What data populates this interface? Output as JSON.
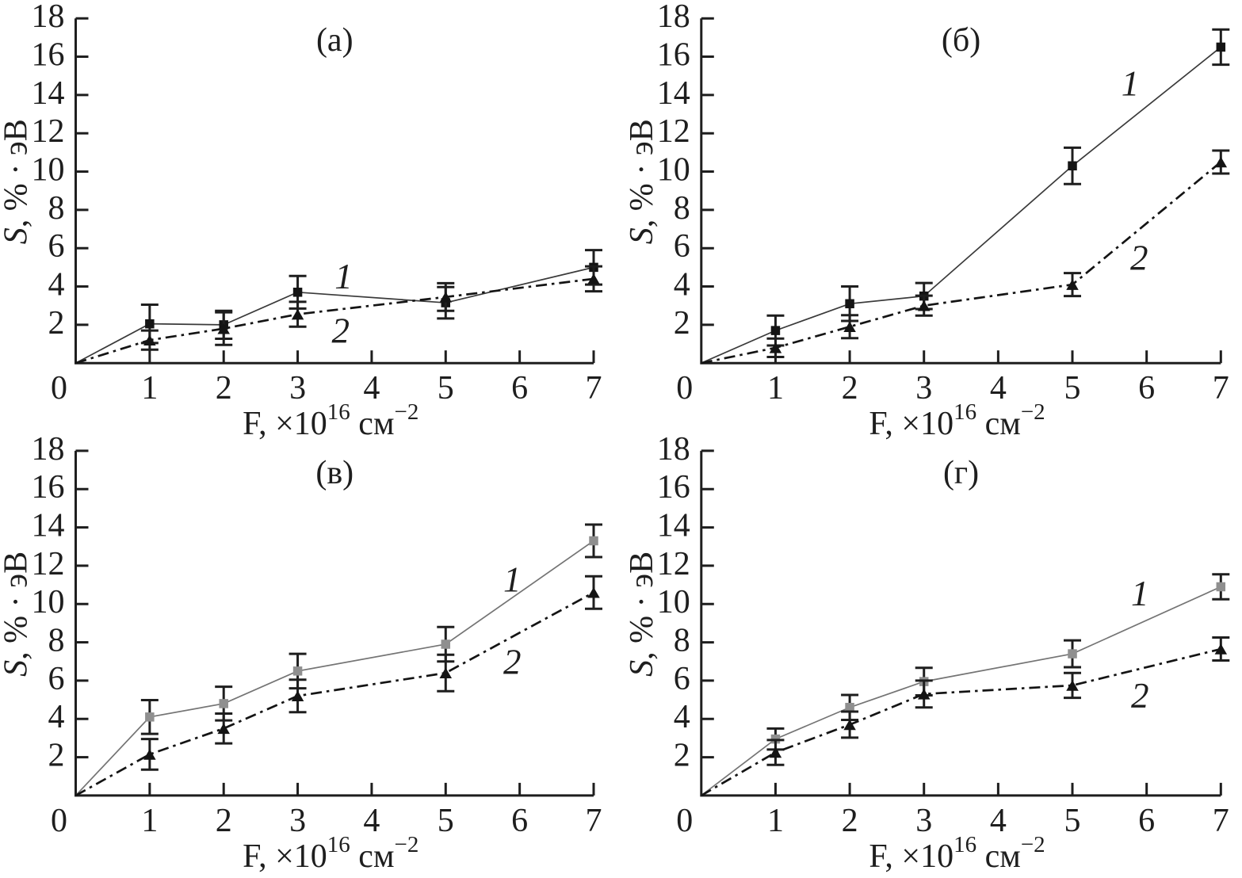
{
  "figure": {
    "background": "#ffffff",
    "ink_color": "#1e1e1e",
    "gray_line_color": "#747474",
    "gray_marker_color": "#8f8f8f",
    "dark_line_color": "#3a3a3a"
  },
  "chart_data": [
    {
      "type": "line",
      "title": "(a)",
      "xlabel": "F, ×10¹⁶ см⁻²",
      "ylabel": "S, % · эВ",
      "xlabel_parts": [
        {
          "t": "F, ×10"
        },
        {
          "t": "16",
          "sup": true
        },
        {
          "t": " см"
        },
        {
          "t": "−2",
          "sup": true
        }
      ],
      "ylabel_parts": [
        {
          "t": "S",
          "italic": true
        },
        {
          "t": ", % · эВ"
        }
      ],
      "xlim": [
        0,
        7
      ],
      "ylim": [
        0,
        18
      ],
      "xticks": [
        0,
        1,
        2,
        3,
        4,
        5,
        6,
        7
      ],
      "yticks": [
        2,
        4,
        6,
        8,
        10,
        12,
        14,
        16,
        18
      ],
      "grid": false,
      "legend_position": "none",
      "series": [
        {
          "name": "1",
          "marker": "square",
          "line_style": "solid",
          "line_color": "#3a3a3a",
          "marker_color": "#141414",
          "x": [
            0,
            1,
            2,
            3,
            5,
            7
          ],
          "y": [
            0,
            2.05,
            2.0,
            3.7,
            3.15,
            5.0
          ],
          "yerr": [
            null,
            1.0,
            0.73,
            0.85,
            0.82,
            0.9
          ]
        },
        {
          "name": "2",
          "marker": "triangle",
          "line_style": "dashdot",
          "line_color": "#141414",
          "marker_color": "#141414",
          "x": [
            0,
            1,
            2,
            3,
            5,
            7
          ],
          "y": [
            0,
            1.2,
            1.8,
            2.55,
            3.45,
            4.4
          ],
          "yerr": [
            null,
            0.5,
            0.85,
            0.65,
            0.72,
            0.65
          ]
        }
      ],
      "series_labels": [
        {
          "text": "1",
          "x": 3.62,
          "y": 4.52
        },
        {
          "text": "2",
          "x": 3.58,
          "y": 1.68
        }
      ]
    },
    {
      "type": "line",
      "title": "(б)",
      "xlabel": "F, ×10¹⁶ см⁻²",
      "ylabel": "S, % · эВ",
      "xlabel_parts": [
        {
          "t": "F, ×10"
        },
        {
          "t": "16",
          "sup": true
        },
        {
          "t": " см"
        },
        {
          "t": "−2",
          "sup": true
        }
      ],
      "ylabel_parts": [
        {
          "t": "S",
          "italic": true
        },
        {
          "t": ", % · эВ"
        }
      ],
      "xlim": [
        0,
        7
      ],
      "ylim": [
        0,
        18
      ],
      "xticks": [
        0,
        1,
        2,
        3,
        4,
        5,
        6,
        7
      ],
      "yticks": [
        2,
        4,
        6,
        8,
        10,
        12,
        14,
        16,
        18
      ],
      "grid": false,
      "legend_position": "none",
      "series": [
        {
          "name": "1",
          "marker": "square",
          "line_style": "solid",
          "line_color": "#3a3a3a",
          "marker_color": "#141414",
          "x": [
            0,
            1,
            2,
            3,
            5,
            7
          ],
          "y": [
            0,
            1.7,
            3.1,
            3.5,
            10.3,
            16.5
          ],
          "yerr": [
            null,
            0.78,
            0.9,
            0.68,
            0.95,
            0.92
          ]
        },
        {
          "name": "2",
          "marker": "triangle",
          "line_style": "dashdot",
          "line_color": "#141414",
          "marker_color": "#141414",
          "x": [
            0,
            1,
            2,
            3,
            5,
            7
          ],
          "y": [
            0,
            0.8,
            1.9,
            3.0,
            4.1,
            10.5
          ],
          "yerr": [
            null,
            0.48,
            0.6,
            0.52,
            0.6,
            0.6
          ]
        }
      ],
      "series_labels": [
        {
          "text": "1",
          "x": 5.78,
          "y": 14.6
        },
        {
          "text": "2",
          "x": 5.9,
          "y": 5.5
        }
      ]
    },
    {
      "type": "line",
      "title": "(в)",
      "xlabel": "F, ×10¹⁶ см⁻²",
      "ylabel": "S, % · эВ",
      "xlabel_parts": [
        {
          "t": "F, ×10"
        },
        {
          "t": "16",
          "sup": true
        },
        {
          "t": " см"
        },
        {
          "t": "−2",
          "sup": true
        }
      ],
      "ylabel_parts": [
        {
          "t": "S",
          "italic": true
        },
        {
          "t": ", % · эВ"
        }
      ],
      "xlim": [
        0,
        7
      ],
      "ylim": [
        0,
        18
      ],
      "xticks": [
        0,
        1,
        2,
        3,
        4,
        5,
        6,
        7
      ],
      "yticks": [
        2,
        4,
        6,
        8,
        10,
        12,
        14,
        16,
        18
      ],
      "grid": false,
      "legend_position": "none",
      "series": [
        {
          "name": "1",
          "marker": "square",
          "line_style": "solid",
          "line_color": "#747474",
          "marker_color": "#8f8f8f",
          "x": [
            0,
            1,
            2,
            3,
            5,
            7
          ],
          "y": [
            0,
            4.1,
            4.8,
            6.5,
            7.9,
            13.3
          ],
          "yerr": [
            null,
            0.88,
            0.88,
            0.9,
            0.9,
            0.85
          ]
        },
        {
          "name": "2",
          "marker": "triangle",
          "line_style": "dashdot",
          "line_color": "#141414",
          "marker_color": "#141414",
          "x": [
            0,
            1,
            2,
            3,
            5,
            7
          ],
          "y": [
            0,
            2.15,
            3.5,
            5.2,
            6.4,
            10.6
          ],
          "yerr": [
            null,
            0.8,
            0.78,
            0.85,
            0.95,
            0.85
          ]
        }
      ],
      "series_labels": [
        {
          "text": "1",
          "x": 5.9,
          "y": 11.27
        },
        {
          "text": "2",
          "x": 5.9,
          "y": 6.97
        }
      ]
    },
    {
      "type": "line",
      "title": "(г)",
      "xlabel": "F, ×10¹⁶ см⁻²",
      "ylabel": "S, % · эВ",
      "xlabel_parts": [
        {
          "t": "F, ×10"
        },
        {
          "t": "16",
          "sup": true
        },
        {
          "t": " см"
        },
        {
          "t": "−2",
          "sup": true
        }
      ],
      "ylabel_parts": [
        {
          "t": "S",
          "italic": true
        },
        {
          "t": ", % · эВ"
        }
      ],
      "xlim": [
        0,
        7
      ],
      "ylim": [
        0,
        18
      ],
      "xticks": [
        0,
        1,
        2,
        3,
        4,
        5,
        6,
        7
      ],
      "yticks": [
        2,
        4,
        6,
        8,
        10,
        12,
        14,
        16,
        18
      ],
      "grid": false,
      "legend_position": "none",
      "series": [
        {
          "name": "1",
          "marker": "square",
          "line_style": "solid",
          "line_color": "#747474",
          "marker_color": "#8f8f8f",
          "x": [
            0,
            1,
            2,
            3,
            5,
            7
          ],
          "y": [
            0,
            2.95,
            4.6,
            5.95,
            7.4,
            10.9
          ],
          "yerr": [
            null,
            0.55,
            0.65,
            0.72,
            0.7,
            0.65
          ]
        },
        {
          "name": "2",
          "marker": "triangle",
          "line_style": "dashdot",
          "line_color": "#141414",
          "marker_color": "#141414",
          "x": [
            0,
            1,
            2,
            3,
            5,
            7
          ],
          "y": [
            0,
            2.25,
            3.7,
            5.3,
            5.75,
            7.65
          ],
          "yerr": [
            null,
            0.65,
            0.68,
            0.7,
            0.65,
            0.6
          ]
        }
      ],
      "series_labels": [
        {
          "text": "1",
          "x": 5.91,
          "y": 10.55
        },
        {
          "text": "2",
          "x": 5.91,
          "y": 5.21
        }
      ]
    }
  ]
}
